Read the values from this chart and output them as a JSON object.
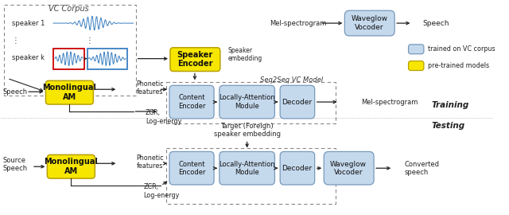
{
  "vc_corpus_label": "VC Corpus",
  "seq2seq_label": "Seq2Seq VC Model",
  "speaker1_label": "speaker 1",
  "speakerk_label": "speaker k",
  "speech_label": "Speech",
  "source_speech_label": "Source\nSpeech",
  "monolingual_am_label": "Monolingual\nAM",
  "speaker_encoder_label": "Speaker\nEncoder",
  "content_encoder_label": "Content\nEncoder",
  "locally_attention_label": "Locally-Attention\nModule",
  "decoder_label": "Decoder",
  "waveglow_label": "Waveglow\nVocoder",
  "mel_spectrogram_label": "Mel-spectrogram",
  "speech_out_label": "Speech",
  "converted_speech_label": "Converted\nspeech",
  "phonetic_label": "Phonetic\nfeatures",
  "zcr_label": "ZCR,\nLog-energy",
  "speaker_embedding_label": "Speaker\nembedding",
  "target_foreign_label": "Target (Foreign)\nspeaker embedding",
  "training_label": "Training",
  "testing_label": "Testing",
  "legend_blue_label": "trained on VC corpus",
  "legend_yellow_label": "pre-trained models",
  "blue_color": "#c5d9ed",
  "yellow_color": "#f7e600",
  "bg_color": "#ffffff",
  "red_color": "#cc0000",
  "blue_wave": "#3a7fc1"
}
